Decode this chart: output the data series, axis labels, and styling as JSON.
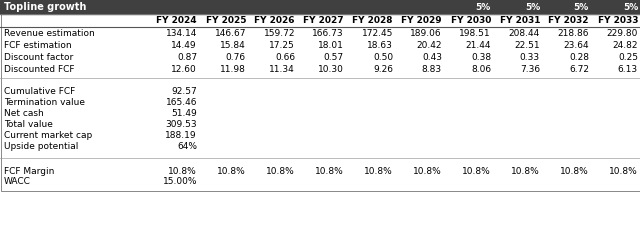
{
  "title": "Topline growth",
  "topline_growth_values": [
    "5%",
    "5%",
    "5%",
    "5%"
  ],
  "topline_growth_col_indices": [
    6,
    7,
    8,
    9
  ],
  "years": [
    "FY 2024",
    "FY 2025",
    "FY 2026",
    "FY 2027",
    "FY 2028",
    "FY 2029",
    "FY 2030",
    "FY 2031",
    "FY 2032",
    "FY 2033"
  ],
  "rows": [
    {
      "label": "Revenue estimation",
      "values": [
        "134.14",
        "146.67",
        "159.72",
        "166.73",
        "172.45",
        "189.06",
        "198.51",
        "208.44",
        "218.86",
        "229.80"
      ]
    },
    {
      "label": "FCF estimation",
      "values": [
        "14.49",
        "15.84",
        "17.25",
        "18.01",
        "18.63",
        "20.42",
        "21.44",
        "22.51",
        "23.64",
        "24.82"
      ]
    },
    {
      "label": "Discount factor",
      "values": [
        "0.87",
        "0.76",
        "0.66",
        "0.57",
        "0.50",
        "0.43",
        "0.38",
        "0.33",
        "0.28",
        "0.25"
      ]
    },
    {
      "label": "Discounted FCF",
      "values": [
        "12.60",
        "11.98",
        "11.34",
        "10.30",
        "9.26",
        "8.83",
        "8.06",
        "7.36",
        "6.72",
        "6.13"
      ]
    }
  ],
  "summary_rows": [
    {
      "label": "Cumulative FCF",
      "value": "92.57"
    },
    {
      "label": "Termination value",
      "value": "165.46"
    },
    {
      "label": "Net cash",
      "value": "51.49"
    },
    {
      "label": "Total value",
      "value": "309.53"
    },
    {
      "label": "Current market cap",
      "value": "188.19"
    },
    {
      "label": "Upside potential",
      "value": "64%"
    }
  ],
  "fcf_margin_label": "FCF Margin",
  "fcf_margin_values": [
    "10.8%",
    "10.8%",
    "10.8%",
    "10.8%",
    "10.8%",
    "10.8%",
    "10.8%",
    "10.8%",
    "10.8%",
    "10.8%"
  ],
  "wacc_label": "WACC",
  "wacc_value": "15.00%",
  "header_bg": "#404040",
  "header_fg": "#ffffff",
  "bg_color": "#ffffff",
  "font_size": 6.5,
  "bold_font_size": 7.0
}
